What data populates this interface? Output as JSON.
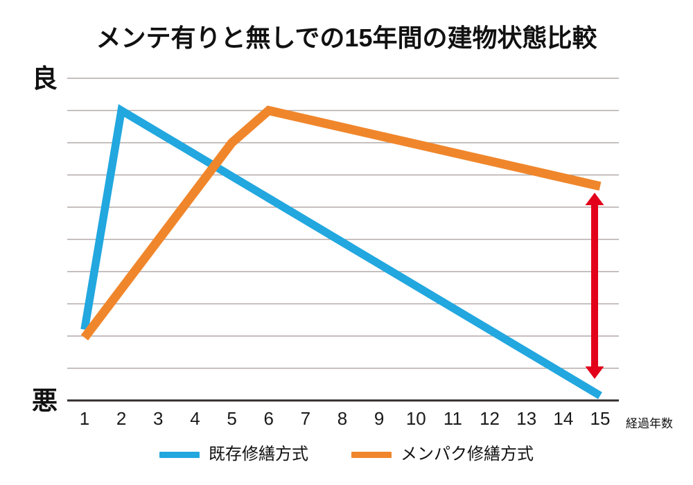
{
  "chart_data": {
    "type": "line",
    "title": "メンテ有りと無しでの15年間の建物状態比較",
    "x_axis": {
      "label": "経過年数",
      "ticks": [
        "1",
        "2",
        "3",
        "4",
        "5",
        "6",
        "7",
        "8",
        "9",
        "10",
        "11",
        "12",
        "13",
        "14",
        "15"
      ],
      "range": [
        1,
        15
      ]
    },
    "y_axis": {
      "label_top": "良",
      "label_bottom": "悪",
      "range": [
        0,
        10
      ],
      "gridline_divisions": 10,
      "grid": "horizontal gridlines on",
      "grid_color": "#b2aaa7",
      "axis_color": "#332d2d"
    },
    "series": [
      {
        "name": "既存修繕方式",
        "color": "#22a7df",
        "stroke_width": 11.5,
        "points": [
          [
            1,
            2.2
          ],
          [
            2,
            9.0
          ],
          [
            15,
            0.15
          ]
        ]
      },
      {
        "name": "メンパク修繕方式",
        "color": "#f0862b",
        "stroke_width": 13,
        "points": [
          [
            1,
            1.95
          ],
          [
            5,
            8.0
          ],
          [
            6,
            9.0
          ],
          [
            15,
            6.65
          ]
        ]
      }
    ],
    "annotation": {
      "type": "double_arrow",
      "color": "#e2001a",
      "x_year": 14.85,
      "value_top": 6.45,
      "value_bottom": 0.67
    },
    "legend_position": "bottom-center"
  },
  "legend": [
    {
      "label": "既存修繕方式",
      "color": "#22a7df"
    },
    {
      "label": "メンパク修繕方式",
      "color": "#f0862b"
    }
  ]
}
